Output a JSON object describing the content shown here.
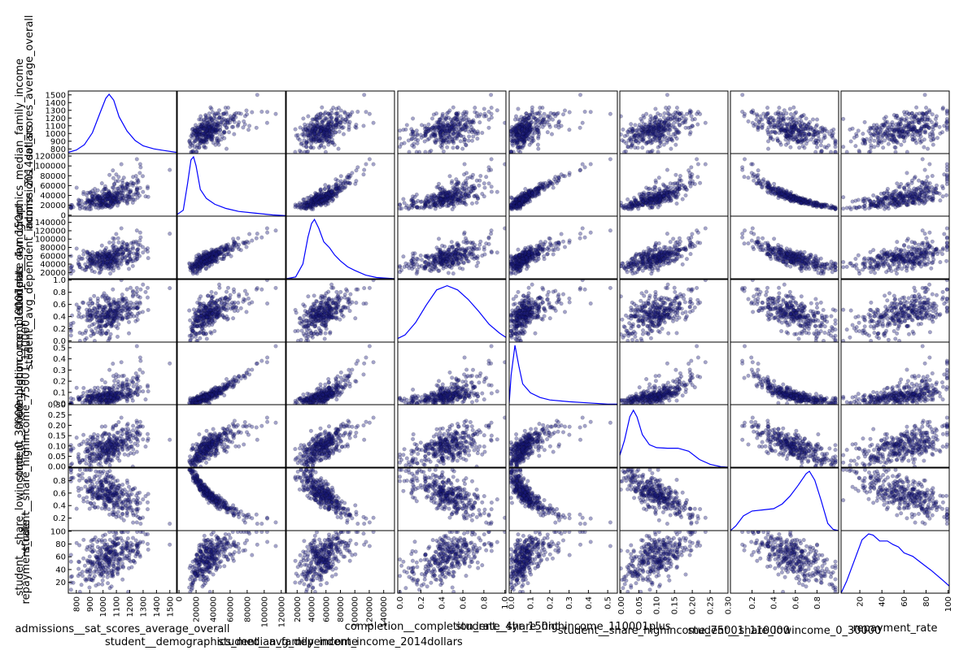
{
  "colors": {
    "point_fill": "#1a1a7a",
    "kde_line": "#0000ff",
    "frame": "#000000"
  },
  "chart_data": {
    "type": "scatter",
    "subtype": "scatter-matrix",
    "diagonal": "kde",
    "point_alpha": 0.4,
    "variables": [
      {
        "name": "admissions__sat_scores_average_overall",
        "range": [
          740,
          1550
        ],
        "ticks": [
          "800",
          "900",
          "1000",
          "1100",
          "1200",
          "1300",
          "1400",
          "1500"
        ],
        "tick_values": [
          800,
          900,
          1000,
          1100,
          1200,
          1300,
          1400,
          1500
        ]
      },
      {
        "name": "student__demographics_median_family_income",
        "range": [
          -2000,
          125000
        ],
        "ticks": [
          "0",
          "20000",
          "40000",
          "60000",
          "80000",
          "100000",
          "120000"
        ],
        "tick_values": [
          0,
          20000,
          40000,
          60000,
          80000,
          100000,
          120000
        ]
      },
      {
        "name": "student__avg_dependent_income_2014dollars",
        "range": [
          5000,
          155000
        ],
        "ticks": [
          "20000",
          "40000",
          "60000",
          "80000",
          "100000",
          "120000",
          "140000"
        ],
        "tick_values": [
          20000,
          40000,
          60000,
          80000,
          100000,
          120000,
          140000
        ]
      },
      {
        "name": "completion__completion_rate_4yr_150nt",
        "range": [
          -0.02,
          1.01
        ],
        "ticks": [
          "0.0",
          "0.2",
          "0.4",
          "0.6",
          "0.8",
          "1.0"
        ],
        "tick_values": [
          0,
          0.2,
          0.4,
          0.6,
          0.8,
          1.0
        ]
      },
      {
        "name": "student__share_highincome_110001plus",
        "range": [
          -0.01,
          0.55
        ],
        "ticks": [
          "0.0",
          "0.1",
          "0.2",
          "0.3",
          "0.4",
          "0.5"
        ],
        "tick_values": [
          0,
          0.1,
          0.2,
          0.3,
          0.4,
          0.5
        ]
      },
      {
        "name": "student__share_highincome_75001_110000",
        "range": [
          -0.003,
          0.3
        ],
        "ticks": [
          "0.00",
          "0.05",
          "0.10",
          "0.15",
          "0.20",
          "0.25",
          "0.30"
        ],
        "tick_values": [
          0,
          0.05,
          0.1,
          0.15,
          0.2,
          0.25,
          0.3
        ]
      },
      {
        "name": "student__share_lowincome_0_30000",
        "range": [
          0.0,
          1.0
        ],
        "ticks": [
          "0.2",
          "0.4",
          "0.6",
          "0.8"
        ],
        "tick_values": [
          0.2,
          0.4,
          0.6,
          0.8
        ]
      },
      {
        "name": "repayment_rate",
        "range": [
          3,
          101
        ],
        "ticks": [
          "20",
          "40",
          "60",
          "80",
          "100"
        ],
        "tick_values": [
          20,
          40,
          60,
          80,
          100
        ]
      }
    ],
    "kde_curves": [
      [
        [
          740,
          0.02
        ],
        [
          800,
          0.06
        ],
        [
          860,
          0.15
        ],
        [
          920,
          0.35
        ],
        [
          980,
          0.7
        ],
        [
          1020,
          0.93
        ],
        [
          1045,
          1.0
        ],
        [
          1080,
          0.9
        ],
        [
          1120,
          0.62
        ],
        [
          1180,
          0.38
        ],
        [
          1240,
          0.22
        ],
        [
          1300,
          0.13
        ],
        [
          1380,
          0.08
        ],
        [
          1460,
          0.05
        ],
        [
          1550,
          0.02
        ]
      ],
      [
        [
          -2000,
          0.03
        ],
        [
          5000,
          0.1
        ],
        [
          10000,
          0.55
        ],
        [
          14000,
          0.95
        ],
        [
          17000,
          1.0
        ],
        [
          20000,
          0.85
        ],
        [
          25000,
          0.45
        ],
        [
          32000,
          0.3
        ],
        [
          42000,
          0.2
        ],
        [
          55000,
          0.13
        ],
        [
          70000,
          0.08
        ],
        [
          90000,
          0.05
        ],
        [
          110000,
          0.02
        ],
        [
          125000,
          0.01
        ]
      ],
      [
        [
          5000,
          0.0
        ],
        [
          18000,
          0.03
        ],
        [
          28000,
          0.25
        ],
        [
          35000,
          0.7
        ],
        [
          40000,
          0.93
        ],
        [
          44000,
          1.0
        ],
        [
          50000,
          0.85
        ],
        [
          57000,
          0.62
        ],
        [
          65000,
          0.52
        ],
        [
          72000,
          0.4
        ],
        [
          80000,
          0.3
        ],
        [
          90000,
          0.2
        ],
        [
          100000,
          0.14
        ],
        [
          115000,
          0.06
        ],
        [
          130000,
          0.02
        ],
        [
          155000,
          0.0
        ]
      ],
      [
        [
          -0.02,
          0.06
        ],
        [
          0.05,
          0.12
        ],
        [
          0.15,
          0.33
        ],
        [
          0.25,
          0.62
        ],
        [
          0.35,
          0.88
        ],
        [
          0.45,
          0.95
        ],
        [
          0.55,
          0.88
        ],
        [
          0.65,
          0.72
        ],
        [
          0.75,
          0.52
        ],
        [
          0.85,
          0.3
        ],
        [
          0.95,
          0.15
        ],
        [
          1.01,
          0.08
        ]
      ],
      [
        [
          -0.01,
          0.02
        ],
        [
          0.0,
          0.5
        ],
        [
          0.02,
          1.0
        ],
        [
          0.04,
          0.65
        ],
        [
          0.06,
          0.35
        ],
        [
          0.1,
          0.2
        ],
        [
          0.15,
          0.12
        ],
        [
          0.2,
          0.08
        ],
        [
          0.3,
          0.05
        ],
        [
          0.4,
          0.03
        ],
        [
          0.5,
          0.01
        ],
        [
          0.55,
          0.01
        ]
      ],
      [
        [
          -0.003,
          0.2
        ],
        [
          0.01,
          0.45
        ],
        [
          0.025,
          0.85
        ],
        [
          0.035,
          0.96
        ],
        [
          0.045,
          0.85
        ],
        [
          0.06,
          0.55
        ],
        [
          0.08,
          0.38
        ],
        [
          0.1,
          0.33
        ],
        [
          0.13,
          0.32
        ],
        [
          0.16,
          0.32
        ],
        [
          0.19,
          0.27
        ],
        [
          0.22,
          0.13
        ],
        [
          0.25,
          0.05
        ],
        [
          0.28,
          0.01
        ],
        [
          0.3,
          0.0
        ]
      ],
      [
        [
          0.0,
          0.0
        ],
        [
          0.05,
          0.08
        ],
        [
          0.12,
          0.25
        ],
        [
          0.2,
          0.33
        ],
        [
          0.3,
          0.35
        ],
        [
          0.4,
          0.37
        ],
        [
          0.48,
          0.45
        ],
        [
          0.55,
          0.58
        ],
        [
          0.62,
          0.75
        ],
        [
          0.7,
          0.96
        ],
        [
          0.73,
          1.0
        ],
        [
          0.78,
          0.85
        ],
        [
          0.84,
          0.5
        ],
        [
          0.9,
          0.12
        ],
        [
          0.95,
          0.02
        ],
        [
          1.0,
          0.0
        ]
      ],
      [
        [
          3,
          0.0
        ],
        [
          8,
          0.2
        ],
        [
          15,
          0.55
        ],
        [
          22,
          0.9
        ],
        [
          28,
          1.0
        ],
        [
          32,
          0.98
        ],
        [
          38,
          0.88
        ],
        [
          45,
          0.88
        ],
        [
          50,
          0.82
        ],
        [
          55,
          0.78
        ],
        [
          60,
          0.68
        ],
        [
          68,
          0.62
        ],
        [
          75,
          0.52
        ],
        [
          85,
          0.38
        ],
        [
          95,
          0.22
        ],
        [
          101,
          0.12
        ]
      ]
    ]
  }
}
